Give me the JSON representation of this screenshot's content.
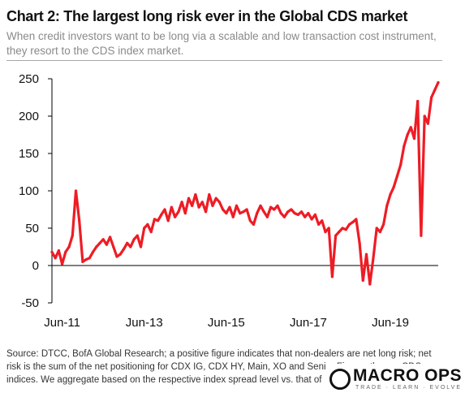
{
  "header": {
    "title": "Chart 2: The largest long risk ever in the Global CDS market",
    "subtitle": "When credit investors want to be long via a scalable and low transaction cost instrument, they resort to the CDS index market."
  },
  "footer": {
    "source": "Source: DTCC, BofA Global Research; a positive figure indicates that non-dealers are net long risk; net risk is the sum of the net positioning for CDX IG, CDX HY, Main, XO and Senior Fins on the run CDS indices. We aggregate based on the respective index spread level vs. that of"
  },
  "logo": {
    "name": "MACRO OPS",
    "tagline": "TRADE · LEARN · EVOLVE"
  },
  "colors": {
    "series": "#ee1c25",
    "axis": "#000000",
    "title": "#111111",
    "subtitle": "#8a8a8a"
  },
  "chart_data": {
    "type": "line",
    "title": "Chart 2: The largest long risk ever in the Global CDS market",
    "xlabel": "",
    "ylabel": "",
    "ylim": [
      -50,
      250
    ],
    "yticks": [
      -50,
      0,
      50,
      100,
      150,
      200,
      250
    ],
    "xlim": [
      "2011-03",
      "2020-08"
    ],
    "xticks": [
      "Jun-11",
      "Jun-13",
      "Jun-15",
      "Jun-17",
      "Jun-19"
    ],
    "grid": false,
    "legend": "none",
    "x": [
      "2011-03",
      "2011-04",
      "2011-05",
      "2011-06",
      "2011-07",
      "2011-08",
      "2011-09",
      "2011-10",
      "2011-11",
      "2011-12",
      "2012-01",
      "2012-02",
      "2012-03",
      "2012-04",
      "2012-05",
      "2012-06",
      "2012-07",
      "2012-08",
      "2012-09",
      "2012-10",
      "2012-11",
      "2012-12",
      "2013-01",
      "2013-02",
      "2013-03",
      "2013-04",
      "2013-05",
      "2013-06",
      "2013-07",
      "2013-08",
      "2013-09",
      "2013-10",
      "2013-11",
      "2013-12",
      "2014-01",
      "2014-02",
      "2014-03",
      "2014-04",
      "2014-05",
      "2014-06",
      "2014-07",
      "2014-08",
      "2014-09",
      "2014-10",
      "2014-11",
      "2014-12",
      "2015-01",
      "2015-02",
      "2015-03",
      "2015-04",
      "2015-05",
      "2015-06",
      "2015-07",
      "2015-08",
      "2015-09",
      "2015-10",
      "2015-11",
      "2015-12",
      "2016-01",
      "2016-02",
      "2016-03",
      "2016-04",
      "2016-05",
      "2016-06",
      "2016-07",
      "2016-08",
      "2016-09",
      "2016-10",
      "2016-11",
      "2016-12",
      "2017-01",
      "2017-02",
      "2017-03",
      "2017-04",
      "2017-05",
      "2017-06",
      "2017-07",
      "2017-08",
      "2017-09",
      "2017-10",
      "2017-11",
      "2017-12",
      "2018-01",
      "2018-02",
      "2018-03",
      "2018-04",
      "2018-05",
      "2018-06",
      "2018-07",
      "2018-08",
      "2018-09",
      "2018-10",
      "2018-11",
      "2018-12",
      "2019-01",
      "2019-02",
      "2019-03",
      "2019-04",
      "2019-05",
      "2019-06",
      "2019-07",
      "2019-08",
      "2019-09",
      "2019-10",
      "2019-11",
      "2019-12",
      "2020-01",
      "2020-02",
      "2020-03",
      "2020-04",
      "2020-05",
      "2020-06",
      "2020-07",
      "2020-08"
    ],
    "series": [
      {
        "values": [
          18,
          10,
          20,
          2,
          18,
          25,
          40,
          100,
          60,
          5,
          8,
          10,
          18,
          25,
          30,
          35,
          28,
          38,
          25,
          12,
          15,
          22,
          30,
          25,
          35,
          40,
          25,
          50,
          55,
          45,
          62,
          60,
          68,
          75,
          60,
          78,
          65,
          72,
          85,
          70,
          90,
          80,
          95,
          78,
          85,
          72,
          95,
          80,
          90,
          85,
          75,
          70,
          78,
          65,
          80,
          70,
          72,
          75,
          60,
          55,
          70,
          80,
          72,
          65,
          78,
          75,
          80,
          70,
          65,
          72,
          75,
          70,
          68,
          72,
          65,
          70,
          62,
          68,
          55,
          60,
          45,
          50,
          -15,
          40,
          45,
          50,
          48,
          55,
          58,
          62,
          30,
          -20,
          15,
          -25,
          10,
          50,
          45,
          55,
          80,
          95,
          105,
          120,
          135,
          160,
          175,
          185,
          170,
          220,
          40,
          200,
          190,
          225,
          235,
          245
        ]
      }
    ]
  }
}
